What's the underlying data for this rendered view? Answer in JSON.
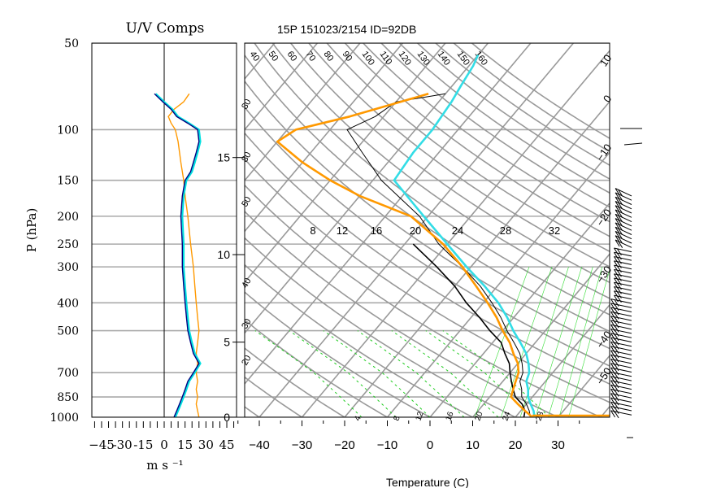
{
  "chart_data": [
    {
      "type": "line",
      "title": "U/V Comps",
      "xlabel": "m s ⁻¹",
      "ylabel": "P (hPa)",
      "y_scale": "log",
      "y_reversed": true,
      "xlim": [
        -52,
        52
      ],
      "ylim": [
        1000,
        50
      ],
      "x_ticks": [
        -45,
        -30,
        -15,
        0,
        15,
        30,
        45
      ],
      "x_tick_labels": [
        "−45",
        "-30",
        "-15",
        "0",
        "15",
        "30",
        "45"
      ],
      "y_ticks": [
        50,
        100,
        150,
        200,
        250,
        300,
        400,
        500,
        700,
        850,
        1000
      ],
      "grid": "horizontal lines at labelled pressures",
      "series": [
        {
          "color": "#ff9900",
          "pressure": [
            1000,
            950,
            900,
            850,
            800,
            750,
            700,
            650,
            600,
            550,
            500,
            450,
            400,
            350,
            300,
            250,
            200,
            170,
            150,
            130,
            110,
            100,
            95,
            90,
            85,
            80,
            75
          ],
          "values": [
            25,
            24,
            23,
            24,
            23,
            24,
            23,
            24,
            23,
            24,
            25,
            24,
            23,
            22,
            21,
            19,
            17,
            15,
            14,
            12,
            10,
            8,
            5,
            3,
            7,
            14,
            18
          ]
        },
        {
          "color": "#00e0e0",
          "pressure": [
            1000,
            950,
            900,
            850,
            800,
            750,
            700,
            650,
            600,
            550,
            500,
            450,
            400,
            350,
            300,
            250,
            200,
            170,
            150,
            140,
            130,
            120,
            110,
            100,
            95,
            90,
            85,
            80,
            75
          ],
          "values": [
            8,
            10,
            12,
            14,
            16,
            18,
            22,
            26,
            22,
            20,
            18,
            17,
            16,
            15,
            14,
            14,
            13,
            14,
            16,
            20,
            22,
            24,
            26,
            25,
            18,
            10,
            6,
            0,
            -6
          ]
        },
        {
          "color": "#000080",
          "pressure": [
            1000,
            950,
            900,
            850,
            800,
            750,
            700,
            650,
            600,
            550,
            500,
            450,
            400,
            350,
            300,
            250,
            200,
            170,
            150,
            140,
            130,
            120,
            110,
            100,
            95,
            90,
            85,
            80,
            75
          ],
          "values": [
            7,
            9,
            11,
            13,
            15,
            17,
            21,
            25,
            21,
            19,
            17,
            16,
            15,
            14,
            13,
            13,
            12,
            13,
            15,
            19,
            21,
            23,
            25,
            24,
            17,
            9,
            5,
            -1,
            -7
          ]
        }
      ]
    },
    {
      "type": "line",
      "title": "15P 151023/2154 ID=92DB",
      "xlabel": "Temperature (C)",
      "y_scale": "log",
      "y_reversed": true,
      "xlim": [
        -43,
        43
      ],
      "ylim": [
        1000,
        50
      ],
      "x_ticks": [
        -40,
        -30,
        -20,
        -10,
        0,
        10,
        20,
        30
      ],
      "x_tick_labels": [
        "−40",
        "−30",
        "−20",
        "−10",
        "0",
        "10",
        "20",
        "30"
      ],
      "height_axis_km": {
        "ticks": [
          0,
          5,
          10,
          15
        ],
        "labels": [
          "0",
          "5",
          "10",
          "15"
        ],
        "pressure_at": [
          1000,
          548,
          272,
          125
        ]
      },
      "isotherm_labels": [
        "40",
        "50",
        "60",
        "70",
        "80",
        "90",
        "100",
        "110",
        "120",
        "130",
        "140",
        "150",
        "160"
      ],
      "dry_adiabat_labels": [
        "80",
        "80",
        "50",
        "40",
        "30",
        "20",
        "10",
        "0",
        "−10",
        "−20",
        "−30",
        "−40",
        "−50"
      ],
      "mixing_ratio_labels": [
        "8",
        "12",
        "16",
        "20",
        "24",
        "28",
        "32"
      ],
      "moist_adiabat_labels": [
        "4",
        "8",
        "12",
        "16",
        "20",
        "24",
        "28"
      ],
      "series": [
        {
          "name": "temperature",
          "color": "#000000",
          "pressure": [
            1000,
            950,
            900,
            850,
            800,
            750,
            700,
            650,
            600,
            550,
            500,
            450,
            400,
            350,
            300,
            250,
            200,
            150,
            120,
            100,
            90,
            80,
            75
          ],
          "values": [
            23.5,
            22,
            20,
            17.5,
            16,
            14,
            13,
            11,
            8.5,
            5,
            1,
            -3,
            -8,
            -14,
            -22,
            -32,
            -42,
            -58,
            -68,
            -76,
            -72,
            -70,
            -60
          ]
        },
        {
          "name": "dewpoint",
          "color": "#000000",
          "pressure": [
            1000,
            950,
            900,
            850,
            800,
            750,
            700,
            650,
            600,
            550,
            500,
            450,
            400,
            350,
            300,
            250
          ],
          "values": [
            22,
            21,
            19,
            16,
            14,
            12,
            10,
            8,
            5,
            2,
            -3,
            -8,
            -14,
            -20,
            -28,
            -38
          ]
        },
        {
          "name": "parcel",
          "color": "#ff9900",
          "pressure": [
            1000,
            950,
            900,
            850,
            800,
            750,
            700,
            650,
            600,
            550,
            500,
            450,
            400,
            350,
            300,
            250,
            200,
            170,
            150,
            130,
            110,
            100,
            90,
            75
          ],
          "values": [
            24,
            21,
            18,
            15,
            14,
            13,
            12,
            10,
            7,
            4,
            0,
            -4,
            -9,
            -15,
            -22,
            -31,
            -44,
            -60,
            -70,
            -80,
            -90,
            -88,
            -78,
            -64
          ]
        },
        {
          "name": "cyan profile",
          "color": "#33dde6",
          "pressure": [
            1000,
            950,
            900,
            850,
            800,
            750,
            700,
            650,
            600,
            550,
            500,
            450,
            400,
            350,
            300,
            250,
            200,
            150,
            120,
            100,
            80,
            70,
            60,
            55
          ],
          "values": [
            24.5,
            23,
            21,
            19,
            17.5,
            15.5,
            14.5,
            12.5,
            10,
            6.5,
            2.5,
            -1.5,
            -6.5,
            -13,
            -21,
            -30,
            -41,
            -55,
            -56,
            -56,
            -57,
            -58,
            -59,
            -60
          ]
        }
      ]
    }
  ]
}
